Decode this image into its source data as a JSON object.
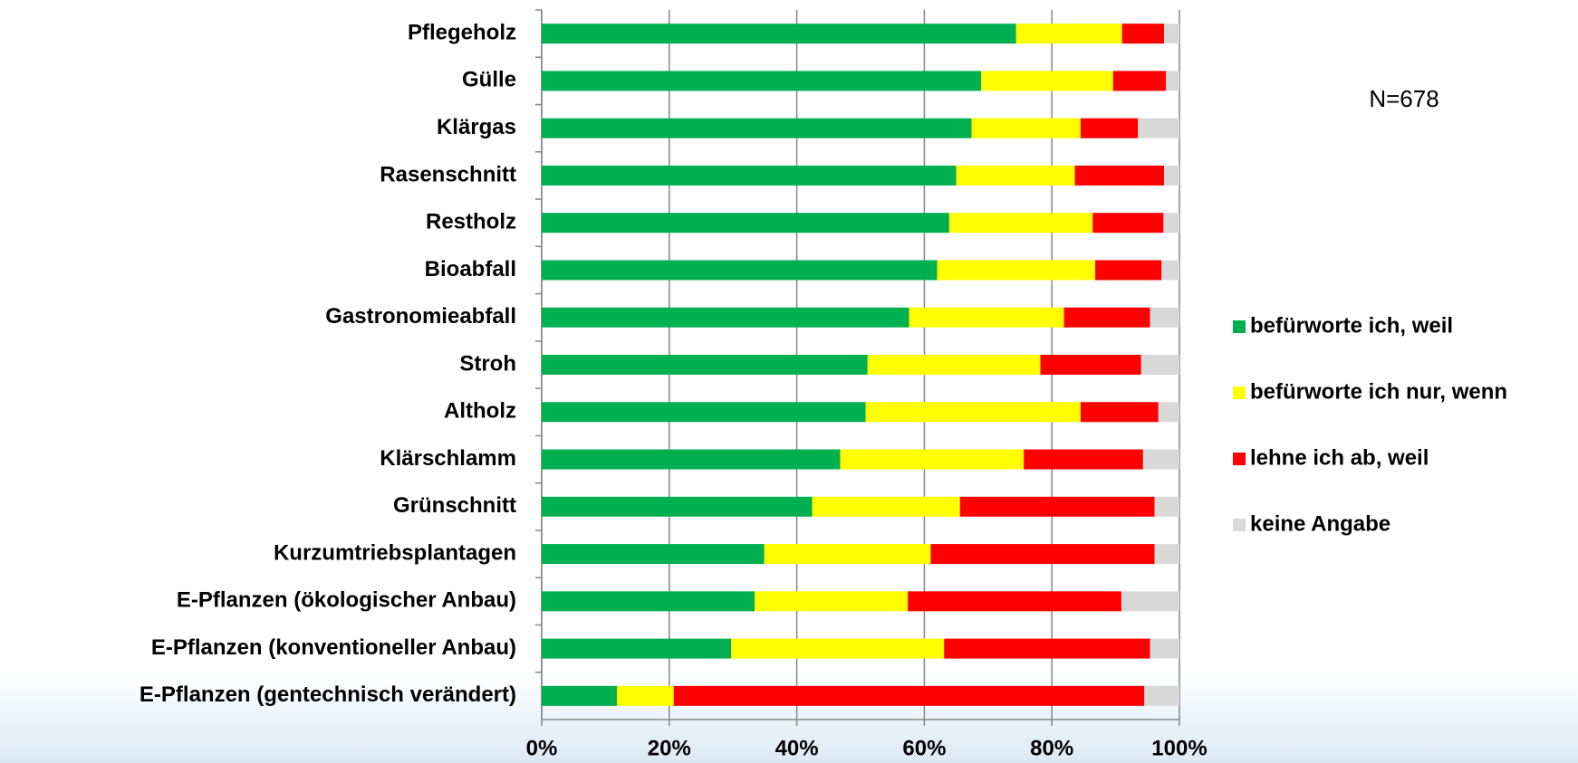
{
  "chart_data": {
    "type": "stacked_bar_horizontal",
    "annotation": "N=678",
    "categories": [
      "Pflegeholz",
      "Gülle",
      "Klärgas",
      "Rasenschnitt",
      "Restholz",
      "Bioabfall",
      "Gastronomieabfall",
      "Stroh",
      "Altholz",
      "Klärschlamm",
      "Grünschnitt",
      "Kurzumtriebsplantagen",
      "E-Pflanzen (ökologischer Anbau)",
      "E-Pflanzen (konventioneller Anbau)",
      "E-Pflanzen (gentechnisch verändert)"
    ],
    "series": [
      {
        "name": "befürworte ich, weil",
        "color": "#00b050",
        "values": [
          74.4,
          68.9,
          67.4,
          65.0,
          63.9,
          62.0,
          57.6,
          51.1,
          50.8,
          46.8,
          42.4,
          34.9,
          33.4,
          29.7,
          11.8
        ]
      },
      {
        "name": "befürworte ich nur, wenn",
        "color": "#ffff00",
        "values": [
          16.6,
          20.7,
          17.1,
          18.6,
          22.5,
          24.8,
          24.3,
          27.1,
          33.7,
          28.8,
          23.2,
          26.1,
          24.0,
          33.4,
          8.9
        ]
      },
      {
        "name": "lehne ich ab, weil",
        "color": "#ff0000",
        "values": [
          6.6,
          8.3,
          9.0,
          14.0,
          11.1,
          10.4,
          13.5,
          15.8,
          12.2,
          18.7,
          30.5,
          35.1,
          33.5,
          32.3,
          73.8
        ]
      },
      {
        "name": "keine Angabe",
        "color": "#d9d9d9",
        "values": [
          2.4,
          2.1,
          6.5,
          2.4,
          2.5,
          2.8,
          4.6,
          6.0,
          3.3,
          5.7,
          3.9,
          3.9,
          9.1,
          4.6,
          5.5
        ]
      }
    ],
    "xlim": [
      0,
      100
    ],
    "xticks": [
      {
        "value": 0,
        "label": "0%"
      },
      {
        "value": 20,
        "label": "20%"
      },
      {
        "value": 40,
        "label": "40%"
      },
      {
        "value": 60,
        "label": "60%"
      },
      {
        "value": 80,
        "label": "80%"
      },
      {
        "value": 100,
        "label": "100%"
      }
    ],
    "grid": true,
    "legend": "right"
  }
}
